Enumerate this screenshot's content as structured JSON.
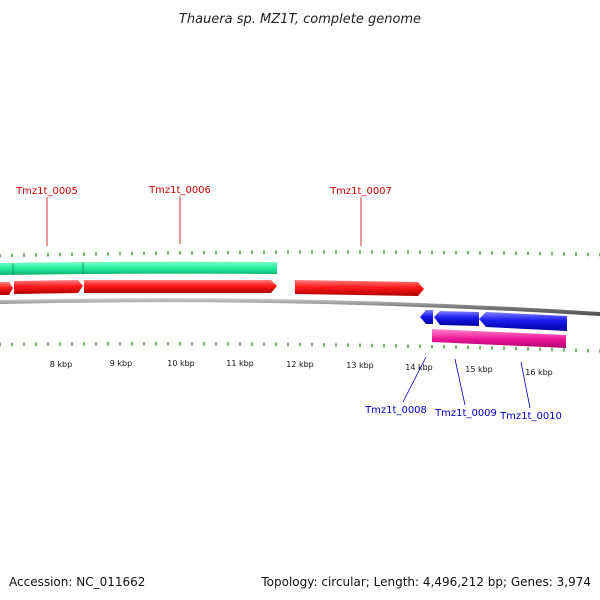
{
  "title": "Thauera sp. MZ1T, complete genome",
  "footer": {
    "accession": "Accession: NC_011662",
    "summary": "Topology: circular; Length: 4,496,212 bp; Genes: 3,974"
  },
  "colors": {
    "forward_label": "#cc0000",
    "reverse_label": "#0000bb",
    "cds_forward": "#ff1a1a",
    "cds_reverse": "#1a1aee",
    "gene_forward": "#22ee99",
    "gene_reverse": "#ee1a99",
    "tick": "#2a8a1a",
    "backbone": "#7a7a7a"
  },
  "tick_labels": [
    "8 kbp",
    "9 kbp",
    "10 kbp",
    "11 kbp",
    "12 kbp",
    "13 kbp",
    "14 kbp",
    "15 kbp",
    "16 kbp"
  ],
  "forward_labels": [
    "Tmz1t_0005",
    "Tmz1t_0006",
    "Tmz1t_0007"
  ],
  "reverse_labels": [
    "Tmz1t_0008",
    "Tmz1t_0009",
    "Tmz1t_0010"
  ]
}
